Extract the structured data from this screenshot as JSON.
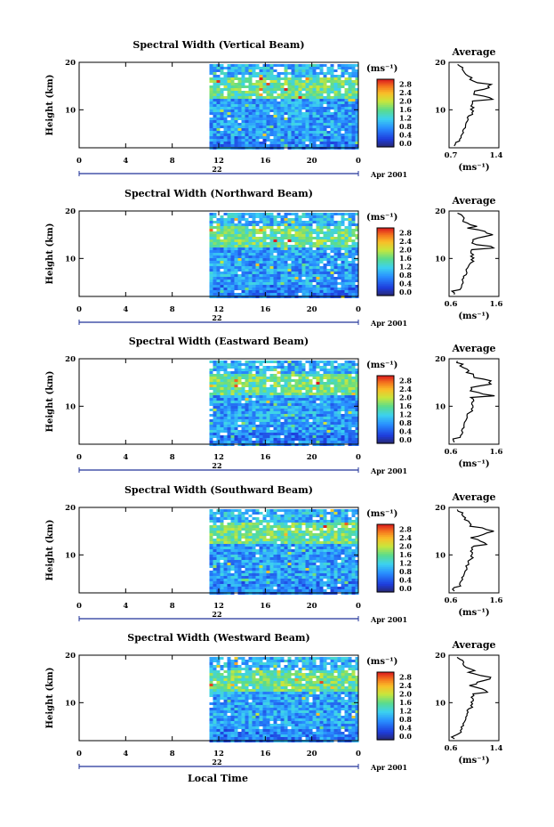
{
  "figure": {
    "bottom_xlabel": "Local Time",
    "date_label": "Apr 2001",
    "day_label": "22",
    "unit_label": "(ms⁻¹)"
  },
  "chart_data": [
    {
      "type": "heatmap",
      "title": "Spectral Width (Vertical Beam)",
      "ylabel": "Height (km)",
      "xlim": [
        0,
        24
      ],
      "ylim": [
        2,
        20
      ],
      "xticks": [
        "0",
        "4",
        "8",
        "12",
        "16",
        "20",
        "0"
      ],
      "yticks": [
        "10",
        "20"
      ],
      "data_start_hour": 11.2,
      "colorbar": {
        "ticks": [
          "0.0",
          "0.4",
          "0.8",
          "1.2",
          "1.6",
          "2.0",
          "2.4",
          "2.8"
        ],
        "range": [
          0,
          3.2
        ]
      },
      "profile": {
        "title": "Average",
        "xlim": [
          0.7,
          1.4
        ],
        "xticks": [
          "0.7",
          "1.4"
        ],
        "xlabel": "(ms⁻¹)",
        "ylim": [
          2,
          20
        ],
        "yticks": [
          "10",
          "20"
        ]
      }
    },
    {
      "type": "heatmap",
      "title": "Spectral Width (Northward Beam)",
      "ylabel": "Height (km)",
      "xlim": [
        0,
        24
      ],
      "ylim": [
        2,
        20
      ],
      "xticks": [
        "0",
        "4",
        "8",
        "12",
        "16",
        "20",
        "0"
      ],
      "yticks": [
        "10",
        "20"
      ],
      "data_start_hour": 11.2,
      "colorbar": {
        "ticks": [
          "0.0",
          "0.4",
          "0.8",
          "1.2",
          "1.6",
          "2.0",
          "2.4",
          "2.8"
        ],
        "range": [
          0,
          3.2
        ]
      },
      "profile": {
        "title": "Average",
        "xlim": [
          0.6,
          1.6
        ],
        "xticks": [
          "0.6",
          "1.6"
        ],
        "xlabel": "(ms⁻¹)",
        "ylim": [
          2,
          20
        ],
        "yticks": [
          "10",
          "20"
        ]
      }
    },
    {
      "type": "heatmap",
      "title": "Spectral Width (Eastward Beam)",
      "ylabel": "Height (km)",
      "xlim": [
        0,
        24
      ],
      "ylim": [
        2,
        20
      ],
      "xticks": [
        "0",
        "4",
        "8",
        "12",
        "16",
        "20",
        "0"
      ],
      "yticks": [
        "10",
        "20"
      ],
      "data_start_hour": 11.2,
      "colorbar": {
        "ticks": [
          "0.0",
          "0.4",
          "0.8",
          "1.2",
          "1.6",
          "2.0",
          "2.4",
          "2.8"
        ],
        "range": [
          0,
          3.2
        ]
      },
      "profile": {
        "title": "Average",
        "xlim": [
          0.6,
          1.6
        ],
        "xticks": [
          "0.6",
          "1.6"
        ],
        "xlabel": "(ms⁻¹)",
        "ylim": [
          2,
          20
        ],
        "yticks": [
          "10",
          "20"
        ]
      }
    },
    {
      "type": "heatmap",
      "title": "Spectral Width (Southward Beam)",
      "ylabel": "Height (km)",
      "xlim": [
        0,
        24
      ],
      "ylim": [
        2,
        20
      ],
      "xticks": [
        "0",
        "4",
        "8",
        "12",
        "16",
        "20",
        "0"
      ],
      "yticks": [
        "10",
        "20"
      ],
      "data_start_hour": 11.2,
      "colorbar": {
        "ticks": [
          "0.0",
          "0.4",
          "0.8",
          "1.2",
          "1.6",
          "2.0",
          "2.4",
          "2.8"
        ],
        "range": [
          0,
          3.2
        ]
      },
      "profile": {
        "title": "Average",
        "xlim": [
          0.6,
          1.6
        ],
        "xticks": [
          "0.6",
          "1.6"
        ],
        "xlabel": "(ms⁻¹)",
        "ylim": [
          2,
          20
        ],
        "yticks": [
          "10",
          "20"
        ]
      }
    },
    {
      "type": "heatmap",
      "title": "Spectral Width (Westward Beam)",
      "ylabel": "Height (km)",
      "xlim": [
        0,
        24
      ],
      "ylim": [
        2,
        20
      ],
      "xticks": [
        "0",
        "4",
        "8",
        "12",
        "16",
        "20",
        "0"
      ],
      "yticks": [
        "10",
        "20"
      ],
      "data_start_hour": 11.2,
      "colorbar": {
        "ticks": [
          "0.0",
          "0.4",
          "0.8",
          "1.2",
          "1.6",
          "2.0",
          "2.4",
          "2.8"
        ],
        "range": [
          0,
          3.2
        ]
      },
      "profile": {
        "title": "Average",
        "xlim": [
          0.6,
          1.6
        ],
        "xticks": [
          "0.6",
          "1.4"
        ],
        "xlabel": "(ms⁻¹)",
        "ylim": [
          2,
          20
        ],
        "yticks": [
          "10",
          "20"
        ]
      }
    }
  ]
}
